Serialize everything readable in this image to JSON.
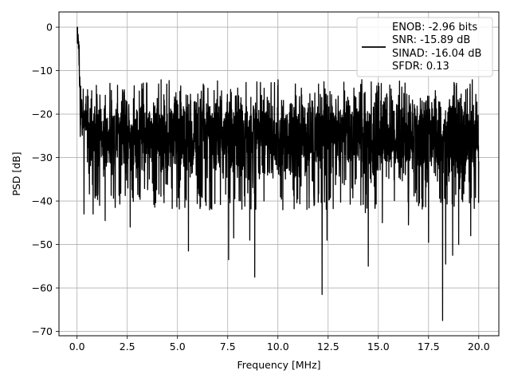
{
  "chart_data": {
    "type": "line",
    "xlabel": "Frequency [MHz]",
    "ylabel": "PSD [dB]",
    "xlim": [
      -0.9,
      21.0
    ],
    "ylim": [
      -71.0,
      3.5
    ],
    "xticks": [
      0.0,
      2.5,
      5.0,
      7.5,
      10.0,
      12.5,
      15.0,
      17.5,
      20.0
    ],
    "xtick_labels": [
      "0.0",
      "2.5",
      "5.0",
      "7.5",
      "10.0",
      "12.5",
      "15.0",
      "17.5",
      "20.0"
    ],
    "yticks": [
      0,
      -10,
      -20,
      -30,
      -40,
      -50,
      -60,
      -70
    ],
    "ytick_labels": [
      "0",
      "−10",
      "−20",
      "−30",
      "−40",
      "−50",
      "−60",
      "−70"
    ],
    "grid": true,
    "legend_placement": "top-right",
    "legend_lines": [
      "ENOB: -2.96 bits",
      "SNR: -15.89 dB",
      "SINAD: -16.04 dB",
      "SFDR: 0.13"
    ],
    "series": [
      {
        "color": "#000000",
        "x_range": [
          0.0,
          20.0
        ],
        "peak": {
          "x": 0.0,
          "y": 0.0
        },
        "noise_floor": {
          "mean": -25.0,
          "upper": -12.0,
          "lower": -38.0
        },
        "dips": [
          {
            "x": 0.35,
            "y": -43.0
          },
          {
            "x": 0.8,
            "y": -43.0
          },
          {
            "x": 1.4,
            "y": -44.5
          },
          {
            "x": 1.9,
            "y": -41.5
          },
          {
            "x": 2.65,
            "y": -46.0
          },
          {
            "x": 5.55,
            "y": -51.5
          },
          {
            "x": 6.6,
            "y": -42.0
          },
          {
            "x": 7.55,
            "y": -53.5
          },
          {
            "x": 7.8,
            "y": -48.5
          },
          {
            "x": 8.6,
            "y": -49.0
          },
          {
            "x": 8.85,
            "y": -57.5
          },
          {
            "x": 10.25,
            "y": -42.0
          },
          {
            "x": 12.2,
            "y": -61.5
          },
          {
            "x": 12.45,
            "y": -49.0
          },
          {
            "x": 14.5,
            "y": -55.0
          },
          {
            "x": 15.2,
            "y": -45.0
          },
          {
            "x": 16.5,
            "y": -45.5
          },
          {
            "x": 17.5,
            "y": -49.5
          },
          {
            "x": 18.2,
            "y": -67.5
          },
          {
            "x": 18.35,
            "y": -54.5
          },
          {
            "x": 18.7,
            "y": -52.5
          },
          {
            "x": 19.0,
            "y": -50.0
          },
          {
            "x": 19.6,
            "y": -48.0
          }
        ]
      }
    ]
  }
}
